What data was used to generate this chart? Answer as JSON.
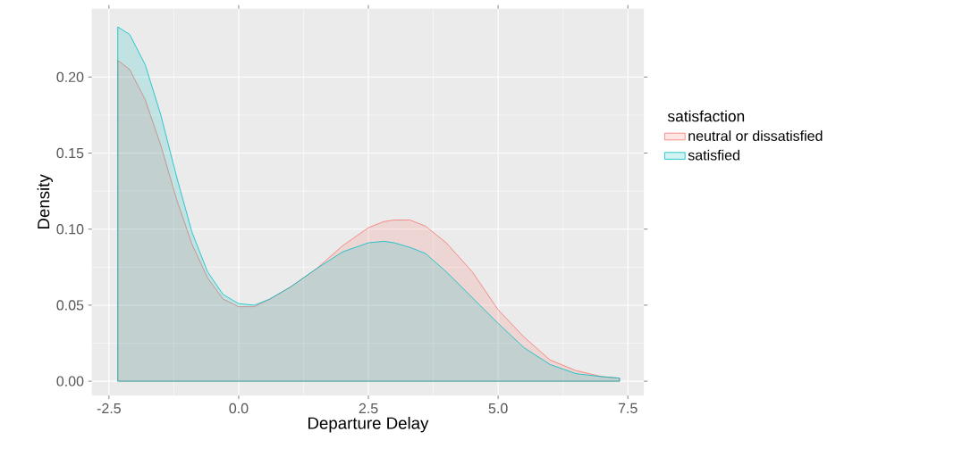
{
  "chart_data": {
    "type": "area",
    "xlabel": "Departure Delay",
    "ylabel": "Density",
    "legend_title": "satisfaction",
    "xlim": [
      -2.83,
      7.81
    ],
    "ylim": [
      -0.0094,
      0.245
    ],
    "xticks": [
      {
        "value": -2.5,
        "label": "-2.5"
      },
      {
        "value": 0,
        "label": "0.0"
      },
      {
        "value": 2.5,
        "label": "2.5"
      },
      {
        "value": 5,
        "label": "5.0"
      },
      {
        "value": 7.5,
        "label": "7.5"
      }
    ],
    "yticks": [
      {
        "value": 0,
        "label": "0.00"
      },
      {
        "value": 0.05,
        "label": "0.05"
      },
      {
        "value": 0.1,
        "label": "0.10"
      },
      {
        "value": 0.15,
        "label": "0.15"
      },
      {
        "value": 0.2,
        "label": "0.20"
      }
    ],
    "grid": true,
    "legend": "right",
    "x": [
      -2.33,
      -2.1,
      -1.8,
      -1.5,
      -1.2,
      -0.9,
      -0.6,
      -0.3,
      0,
      0.3,
      0.6,
      1.0,
      1.5,
      2.0,
      2.5,
      2.8,
      3.0,
      3.3,
      3.6,
      4.0,
      4.5,
      5.0,
      5.5,
      6.0,
      6.5,
      7.0,
      7.34
    ],
    "series": [
      {
        "name": "neutral or dissatisfied",
        "color": "#f8766d",
        "values": [
          0.211,
          0.205,
          0.185,
          0.155,
          0.12,
          0.09,
          0.068,
          0.054,
          0.049,
          0.049,
          0.054,
          0.062,
          0.074,
          0.089,
          0.101,
          0.105,
          0.106,
          0.106,
          0.102,
          0.091,
          0.072,
          0.047,
          0.029,
          0.014,
          0.007,
          0.003,
          0.002
        ]
      },
      {
        "name": "satisfied",
        "color": "#00bfc4",
        "values": [
          0.233,
          0.228,
          0.208,
          0.175,
          0.135,
          0.098,
          0.072,
          0.057,
          0.051,
          0.05,
          0.054,
          0.062,
          0.074,
          0.085,
          0.091,
          0.092,
          0.091,
          0.088,
          0.084,
          0.072,
          0.055,
          0.038,
          0.022,
          0.011,
          0.005,
          0.003,
          0.002
        ]
      }
    ]
  }
}
